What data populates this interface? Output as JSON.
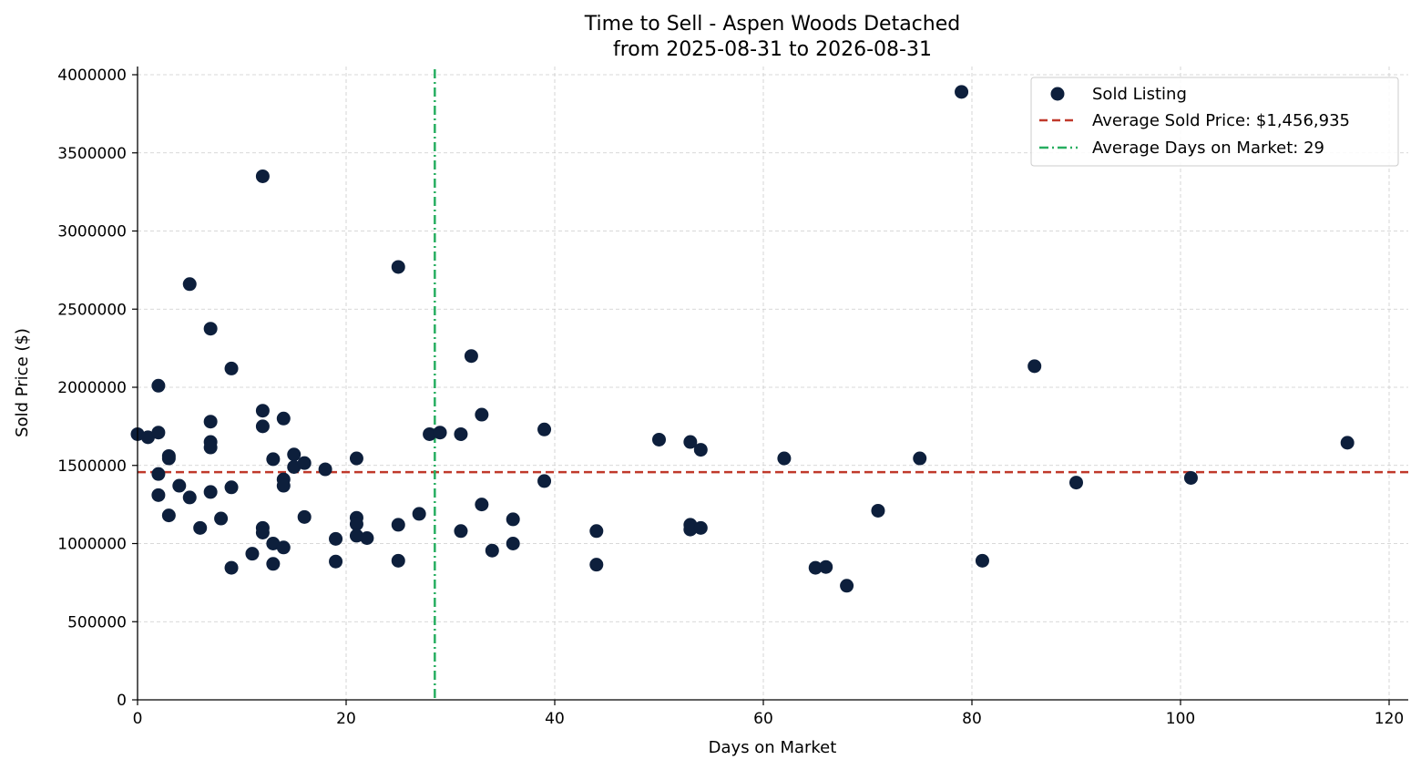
{
  "chart_data": {
    "type": "scatter",
    "title_line1": "Time to Sell - Aspen Woods Detached",
    "title_line2": "from 2025-08-31 to 2026-08-31",
    "xlabel": "Days on Market",
    "ylabel": "Sold Price ($)",
    "xlim": [
      0,
      122
    ],
    "ylim": [
      0,
      4050000
    ],
    "xticks": [
      0,
      20,
      40,
      60,
      80,
      100,
      120
    ],
    "yticks": [
      0,
      500000,
      1000000,
      1500000,
      2000000,
      2500000,
      3000000,
      3500000,
      4000000
    ],
    "grid": true,
    "legend_position": "top-right",
    "colors": {
      "points": "#0d1f3c",
      "avg_price": "#c0392b",
      "avg_days": "#27ae60"
    },
    "series": [
      {
        "name": "Sold Listing",
        "points": [
          [
            0,
            1700000
          ],
          [
            1,
            1680000
          ],
          [
            2,
            2010000
          ],
          [
            2,
            1710000
          ],
          [
            2,
            1445000
          ],
          [
            2,
            1310000
          ],
          [
            3,
            1560000
          ],
          [
            3,
            1545000
          ],
          [
            3,
            1180000
          ],
          [
            4,
            1370000
          ],
          [
            5,
            2660000
          ],
          [
            5,
            1295000
          ],
          [
            6,
            1100000
          ],
          [
            7,
            2375000
          ],
          [
            7,
            1780000
          ],
          [
            7,
            1650000
          ],
          [
            7,
            1615000
          ],
          [
            7,
            1330000
          ],
          [
            8,
            1160000
          ],
          [
            9,
            2120000
          ],
          [
            9,
            1360000
          ],
          [
            9,
            845000
          ],
          [
            11,
            935000
          ],
          [
            12,
            3350000
          ],
          [
            12,
            1850000
          ],
          [
            12,
            1750000
          ],
          [
            12,
            1100000
          ],
          [
            12,
            1070000
          ],
          [
            13,
            1540000
          ],
          [
            13,
            1000000
          ],
          [
            13,
            870000
          ],
          [
            14,
            1800000
          ],
          [
            14,
            1410000
          ],
          [
            14,
            1370000
          ],
          [
            14,
            975000
          ],
          [
            15,
            1570000
          ],
          [
            15,
            1490000
          ],
          [
            16,
            1515000
          ],
          [
            16,
            1170000
          ],
          [
            18,
            1475000
          ],
          [
            19,
            1030000
          ],
          [
            19,
            885000
          ],
          [
            21,
            1545000
          ],
          [
            21,
            1165000
          ],
          [
            21,
            1125000
          ],
          [
            21,
            1050000
          ],
          [
            22,
            1035000
          ],
          [
            25,
            2770000
          ],
          [
            25,
            1120000
          ],
          [
            25,
            890000
          ],
          [
            27,
            1190000
          ],
          [
            28,
            1700000
          ],
          [
            29,
            1710000
          ],
          [
            31,
            1700000
          ],
          [
            31,
            1080000
          ],
          [
            32,
            2200000
          ],
          [
            33,
            1825000
          ],
          [
            33,
            1250000
          ],
          [
            34,
            955000
          ],
          [
            36,
            1155000
          ],
          [
            36,
            1000000
          ],
          [
            39,
            1730000
          ],
          [
            39,
            1400000
          ],
          [
            44,
            1080000
          ],
          [
            44,
            865000
          ],
          [
            50,
            1665000
          ],
          [
            53,
            1650000
          ],
          [
            53,
            1120000
          ],
          [
            53,
            1090000
          ],
          [
            54,
            1600000
          ],
          [
            54,
            1100000
          ],
          [
            62,
            1545000
          ],
          [
            65,
            845000
          ],
          [
            66,
            850000
          ],
          [
            68,
            730000
          ],
          [
            71,
            1210000
          ],
          [
            75,
            1545000
          ],
          [
            79,
            3890000
          ],
          [
            81,
            890000
          ],
          [
            86,
            2135000
          ],
          [
            90,
            1390000
          ],
          [
            101,
            1420000
          ],
          [
            116,
            1645000
          ]
        ]
      }
    ],
    "average_price": 1456935,
    "average_days": 28.5,
    "legend": {
      "sold_label": "Sold Listing",
      "avg_price_label": "Average Sold Price: $1,456,935",
      "avg_days_label": "Average Days on Market: 29"
    }
  }
}
